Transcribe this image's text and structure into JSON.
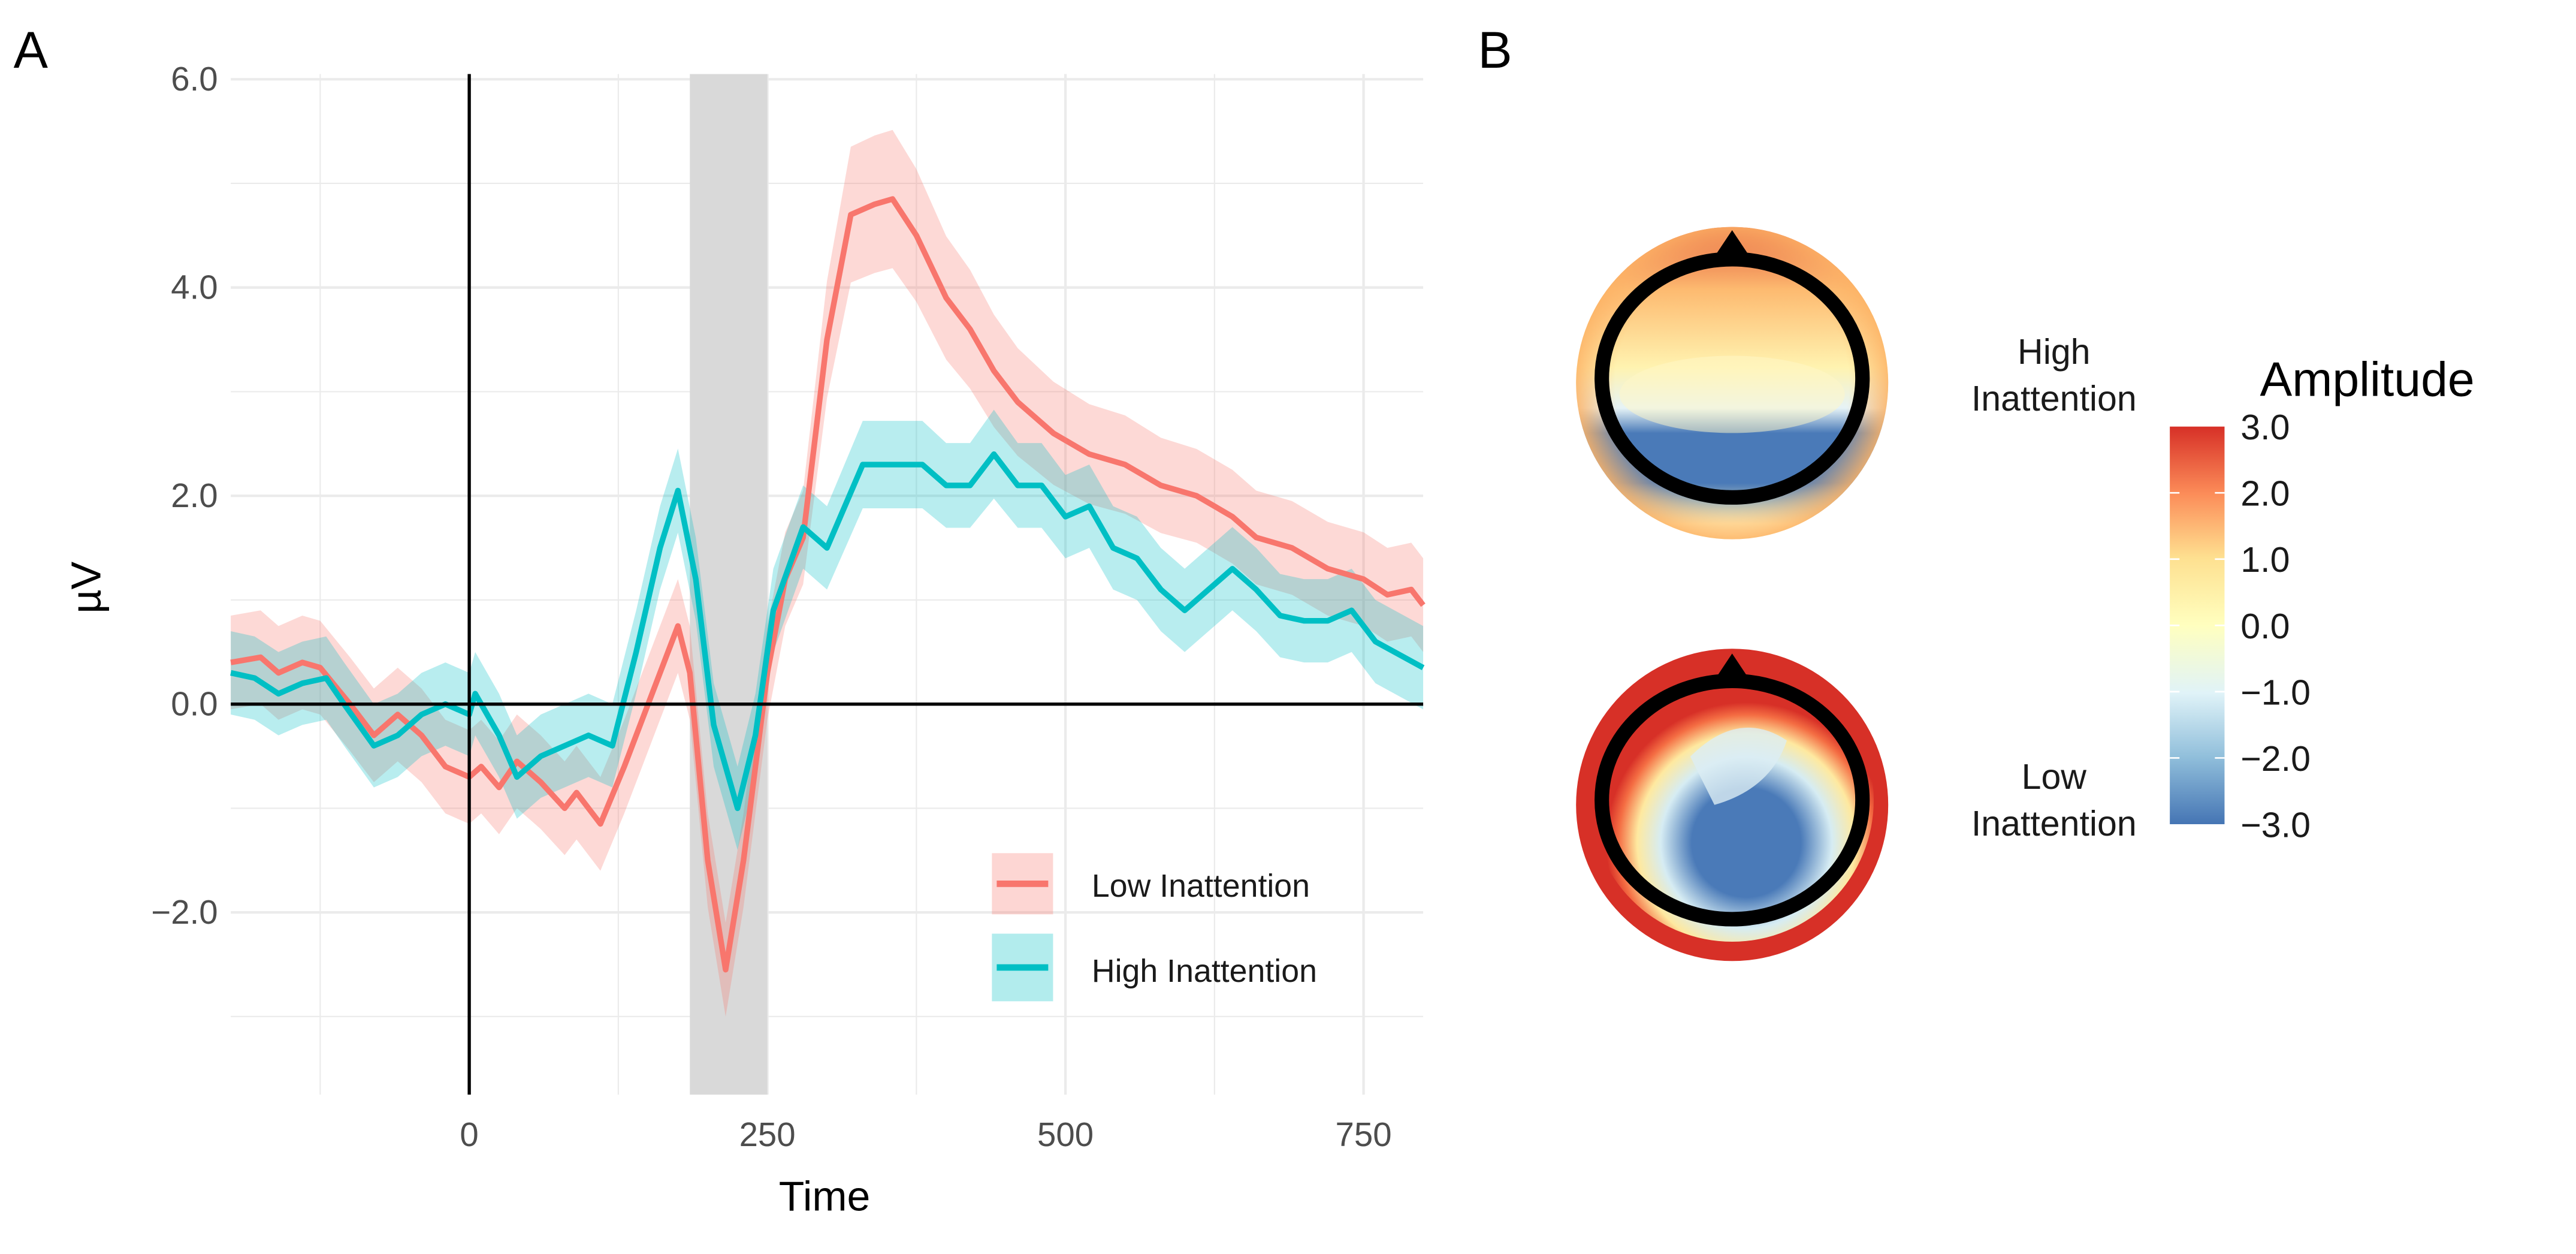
{
  "panels": {
    "a_label": "A",
    "b_label": "B"
  },
  "chart_data": [
    {
      "type": "line",
      "xlabel": "Time",
      "ylabel": "µV",
      "xlim": [
        -200,
        800
      ],
      "ylim": [
        -3.75,
        6.05
      ],
      "xticks": [
        0,
        250,
        500,
        750
      ],
      "xtick_labels": [
        "0",
        "250",
        "500",
        "750"
      ],
      "yticks": [
        -2,
        0,
        2,
        4,
        6
      ],
      "ytick_labels": [
        "−2.0",
        "0.0",
        "2.0",
        "4.0",
        "6.0"
      ],
      "grid": true,
      "shaded_window": [
        185,
        250
      ],
      "legend_position": "bottom-right",
      "series": [
        {
          "name": "Low Inattention",
          "color": "#F8766D",
          "x": [
            -200,
            -175,
            -160,
            -140,
            -125,
            -100,
            -80,
            -60,
            -40,
            -20,
            0,
            10,
            25,
            40,
            60,
            80,
            90,
            110,
            130,
            150,
            175,
            185,
            200,
            215,
            230,
            250,
            265,
            280,
            300,
            320,
            340,
            355,
            375,
            400,
            420,
            440,
            460,
            490,
            520,
            550,
            580,
            610,
            640,
            660,
            690,
            720,
            750,
            770,
            790,
            800
          ],
          "y": [
            0.4,
            0.45,
            0.3,
            0.4,
            0.35,
            0.0,
            -0.3,
            -0.1,
            -0.3,
            -0.6,
            -0.7,
            -0.6,
            -0.8,
            -0.55,
            -0.75,
            -1.0,
            -0.85,
            -1.15,
            -0.6,
            0.0,
            0.75,
            0.3,
            -1.5,
            -2.55,
            -1.5,
            0.3,
            1.2,
            1.6,
            3.5,
            4.7,
            4.8,
            4.85,
            4.5,
            3.9,
            3.6,
            3.2,
            2.9,
            2.6,
            2.4,
            2.3,
            2.1,
            2.0,
            1.8,
            1.6,
            1.5,
            1.3,
            1.2,
            1.05,
            1.1,
            0.95
          ],
          "ci_halfwidth": 0.45
        },
        {
          "name": "High Inattention",
          "color": "#00BFC4",
          "x": [
            -200,
            -180,
            -160,
            -140,
            -120,
            -105,
            -80,
            -60,
            -40,
            -20,
            0,
            5,
            15,
            25,
            40,
            60,
            80,
            100,
            120,
            140,
            160,
            175,
            190,
            205,
            225,
            240,
            255,
            280,
            300,
            330,
            350,
            380,
            400,
            420,
            440,
            460,
            480,
            500,
            520,
            540,
            560,
            580,
            600,
            620,
            640,
            660,
            680,
            700,
            720,
            740,
            760,
            800
          ],
          "y": [
            0.3,
            0.25,
            0.1,
            0.2,
            0.25,
            0.0,
            -0.4,
            -0.3,
            -0.1,
            0.0,
            -0.1,
            0.1,
            -0.1,
            -0.3,
            -0.7,
            -0.5,
            -0.4,
            -0.3,
            -0.4,
            0.5,
            1.5,
            2.05,
            1.2,
            -0.2,
            -1.0,
            -0.3,
            0.9,
            1.7,
            1.5,
            2.3,
            2.3,
            2.3,
            2.1,
            2.1,
            2.4,
            2.1,
            2.1,
            1.8,
            1.9,
            1.5,
            1.4,
            1.1,
            0.9,
            1.1,
            1.3,
            1.1,
            0.85,
            0.8,
            0.8,
            0.9,
            0.6,
            0.35
          ],
          "ci_halfwidth": 0.4
        }
      ]
    },
    {
      "type": "heatmap",
      "title": "Amplitude",
      "colorbar_range": [
        -3,
        3
      ],
      "colorbar_tick_labels": [
        "3.0",
        "2.0",
        "1.0",
        "0.0",
        "−1.0",
        "−2.0",
        "−3.0"
      ],
      "colorscale": [
        "#D73027",
        "#FC8D59",
        "#FEE090",
        "#FFFFBF",
        "#E0F3F8",
        "#91BFDB",
        "#4575B4"
      ],
      "maps": [
        {
          "label_line1": "High",
          "label_line2": "Inattention"
        },
        {
          "label_line1": "Low",
          "label_line2": "Inattention"
        }
      ]
    }
  ]
}
